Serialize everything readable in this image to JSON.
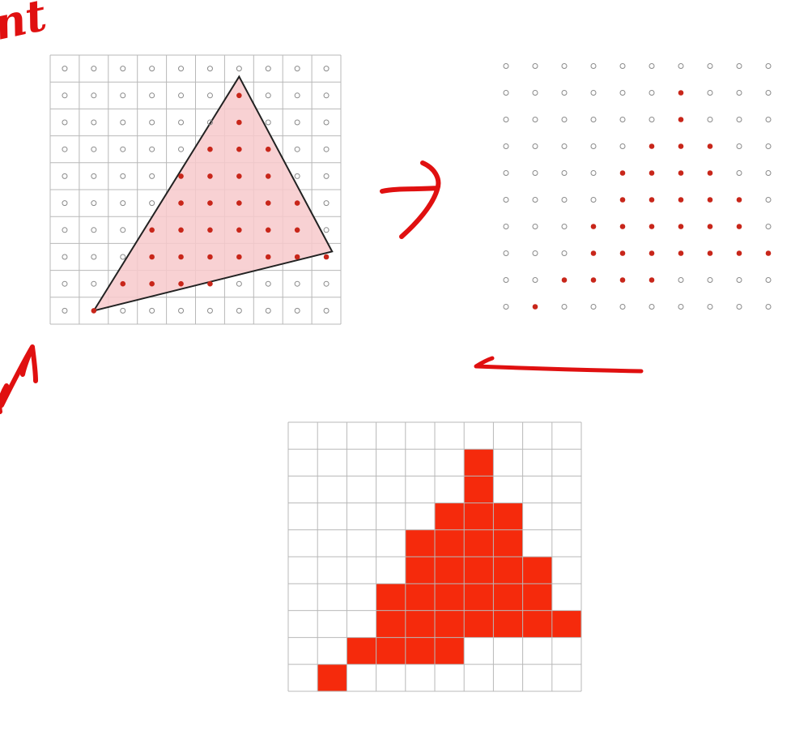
{
  "colors": {
    "fill_red": "#f52a0c",
    "dot_red": "#c8261a",
    "triangle_fill": "#f7c9cb",
    "triangle_stroke": "#222222",
    "grid_line": "#b8b8b8",
    "empty_dot": "#8a8a8a",
    "ink_red": "#e01010"
  },
  "grid": {
    "cols": 10,
    "rows": 10
  },
  "triangle_vertices": [
    [
      1.5,
      9.5
    ],
    [
      6.5,
      0.8
    ],
    [
      9.7,
      7.3
    ]
  ],
  "covered_samples": [
    [
      6,
      1
    ],
    [
      6,
      2
    ],
    [
      5,
      3
    ],
    [
      6,
      3
    ],
    [
      7,
      3
    ],
    [
      4,
      4
    ],
    [
      5,
      4
    ],
    [
      6,
      4
    ],
    [
      7,
      4
    ],
    [
      4,
      5
    ],
    [
      5,
      5
    ],
    [
      6,
      5
    ],
    [
      7,
      5
    ],
    [
      8,
      5
    ],
    [
      3,
      6
    ],
    [
      4,
      6
    ],
    [
      5,
      6
    ],
    [
      6,
      6
    ],
    [
      7,
      6
    ],
    [
      8,
      6
    ],
    [
      3,
      7
    ],
    [
      4,
      7
    ],
    [
      5,
      7
    ],
    [
      6,
      7
    ],
    [
      7,
      7
    ],
    [
      8,
      7
    ],
    [
      9,
      7
    ],
    [
      2,
      8
    ],
    [
      3,
      8
    ],
    [
      4,
      8
    ],
    [
      5,
      8
    ],
    [
      1,
      9
    ]
  ],
  "annotation_glyphs": "nt"
}
